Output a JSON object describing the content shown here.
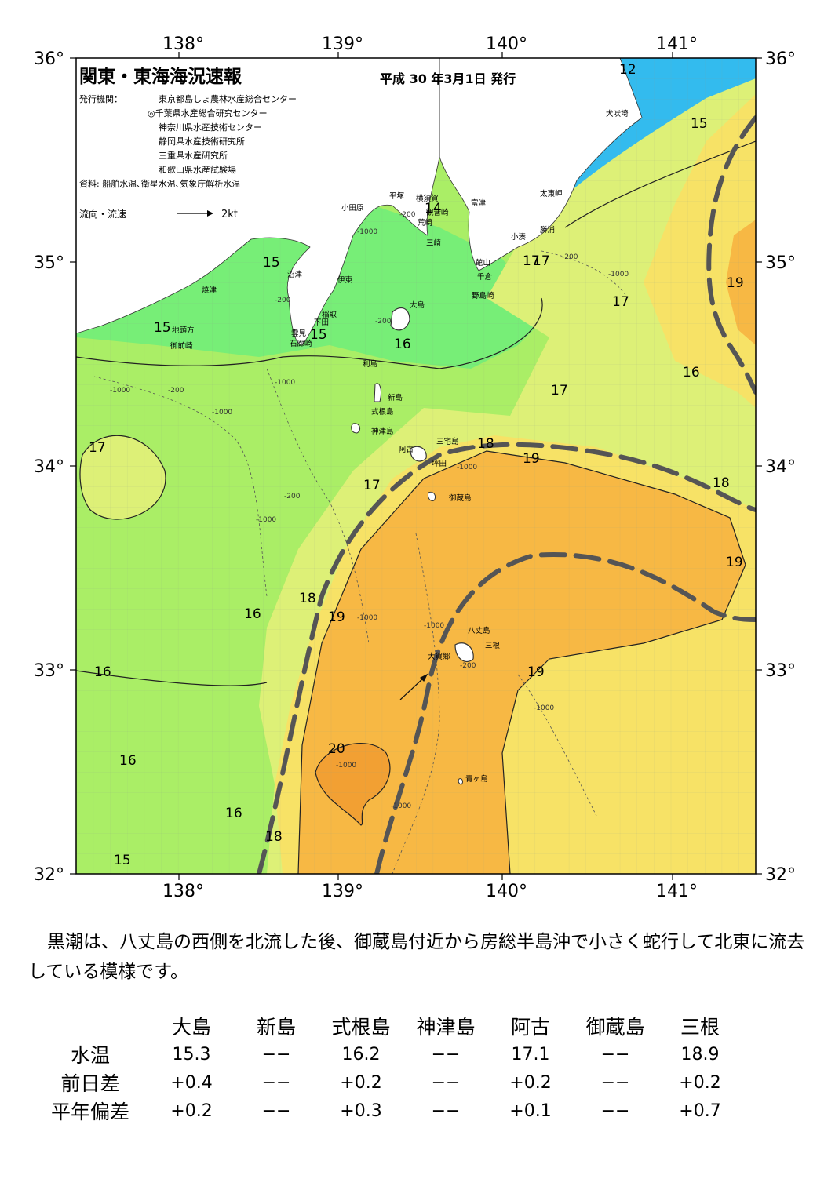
{
  "map": {
    "title": "関東・東海海況速報",
    "issue_date": "平成 30 年3月1日 発行",
    "issuers_label": "発行機関：",
    "issuers": [
      "東京都島しょ農林水産総合センター",
      "◎千葉県水産総合研究センター",
      "神奈川県水産技術センター",
      "静岡県水産技術研究所",
      "三重県水産研究所",
      "和歌山県水産試験場"
    ],
    "source": "資料: 船舶水温､衛星水温､気象庁解析水温",
    "legend_label": "流向・流速",
    "legend_speed": "2kt",
    "longitude_ticks": [
      "138°",
      "139°",
      "140°",
      "141°"
    ],
    "latitude_ticks": [
      "36°",
      "35°",
      "34°",
      "33°",
      "32°"
    ],
    "temperature_labels": [
      "12",
      "15",
      "15",
      "15",
      "15",
      "14",
      "16",
      "17",
      "17",
      "17",
      "17",
      "17",
      "17",
      "18",
      "18",
      "18",
      "18",
      "19",
      "19",
      "19",
      "19",
      "19",
      "16",
      "16",
      "16",
      "16",
      "16",
      "20",
      "15"
    ],
    "depth_label_values": [
      "-200",
      "-1000"
    ],
    "places": [
      "犬吠埼",
      "太東岬",
      "勝浦",
      "小湊",
      "富津",
      "館山",
      "千倉",
      "野島崎",
      "横須賀",
      "観音崎",
      "荒崎",
      "三崎",
      "平塚",
      "小田原",
      "沼津",
      "伊東",
      "稲取",
      "下田",
      "雲見",
      "石廊崎",
      "焼津",
      "地頭方",
      "御前崎",
      "大島",
      "利島",
      "新島",
      "式根島",
      "神津島",
      "三宅島",
      "阿古",
      "坪田",
      "御蔵島",
      "八丈島",
      "三根",
      "大賀郷",
      "青ヶ島"
    ],
    "colors": {
      "sea_12": "#33bbee",
      "sea_15": "#77ee77",
      "sea_16": "#aaee66",
      "sea_17": "#ddf077",
      "sea_18": "#f7e266",
      "sea_19": "#f7b844",
      "sea_20": "#f2a033",
      "land": "#ffffff",
      "kuroshio_axis": "#555555"
    }
  },
  "description": "黒潮は、八丈島の西側を北流した後、御蔵島付近から房総半島沖で小さく蛇行して北東に流去している模様です。",
  "table": {
    "stations": [
      "大島",
      "新島",
      "式根島",
      "神津島",
      "阿古",
      "御蔵島",
      "三根"
    ],
    "rows": [
      {
        "label": "水温",
        "values": [
          "15.3",
          "−−",
          "16.2",
          "−−",
          "17.1",
          "−−",
          "18.9"
        ]
      },
      {
        "label": "前日差",
        "values": [
          "+0.4",
          "−−",
          "+0.2",
          "−−",
          "+0.2",
          "−−",
          "+0.2"
        ]
      },
      {
        "label": "平年偏差",
        "values": [
          "+0.2",
          "−−",
          "+0.3",
          "−−",
          "+0.1",
          "−−",
          "+0.7"
        ]
      }
    ]
  }
}
